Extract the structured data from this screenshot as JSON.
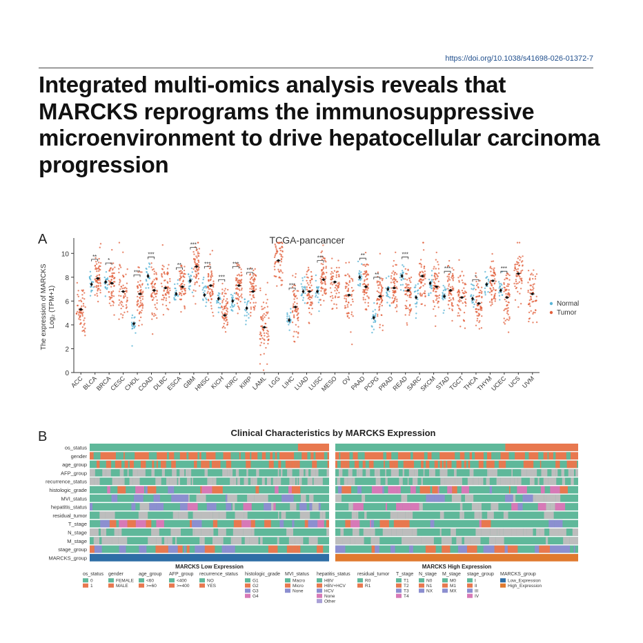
{
  "doi": "https://doi.org/10.1038/s41698-026-01372-7",
  "title": "Integrated multi-omics analysis reveals that MARCKS reprograms the immunosuppressive microenvironment to drive hepatocellular carcinoma progression",
  "colors": {
    "normal": "#5ab4d6",
    "tumor": "#e2603c",
    "teal": "#5fb89a",
    "orange": "#e8784f",
    "low_expr": "#2e6ea6",
    "high_expr": "#e07a2f"
  },
  "panelA": {
    "letter": "A",
    "chart_data": {
      "type": "scatter",
      "title": "TCGA-pancancer",
      "ylabel_line1": "The expression of MARCKS",
      "ylabel_line2": "Log₂ (TPM+1)",
      "ylim": [
        0,
        11
      ],
      "yticks": [
        "0",
        "2",
        "4",
        "6",
        "8",
        "10"
      ],
      "legend": [
        "Normal",
        "Tumor"
      ],
      "categories": [
        "ACC",
        "BLCA",
        "BRCA",
        "CESC",
        "CHOL",
        "COAD",
        "DLBC",
        "ESCA",
        "GBM",
        "HNSC",
        "KICH",
        "KIRC",
        "KIRP",
        "LAML",
        "LGG",
        "LIHC",
        "LUAD",
        "LUSC",
        "MESO",
        "OV",
        "PAAD",
        "PCPG",
        "PRAD",
        "READ",
        "SARC",
        "SKCM",
        "STAD",
        "TGCT",
        "THCA",
        "THYM",
        "UCEC",
        "UCS",
        "UVM"
      ],
      "normal_median": [
        null,
        7.4,
        7.6,
        null,
        4.1,
        8.1,
        null,
        6.6,
        7.7,
        6.5,
        6.2,
        6.0,
        5.4,
        null,
        null,
        4.4,
        6.8,
        6.8,
        null,
        null,
        8.0,
        4.6,
        7.0,
        8.1,
        6.3,
        7.5,
        6.4,
        null,
        6.2,
        7.4,
        6.9,
        null,
        null
      ],
      "tumor_median": [
        5.3,
        7.9,
        7.5,
        6.8,
        6.6,
        6.9,
        7.1,
        7.2,
        8.9,
        7.3,
        4.8,
        7.3,
        6.8,
        3.8,
        9.4,
        5.5,
        6.8,
        7.8,
        7.6,
        6.5,
        7.2,
        6.4,
        7.1,
        6.9,
        8.1,
        7.2,
        6.9,
        6.3,
        5.8,
        7.7,
        6.3,
        8.3,
        6.6
      ],
      "significance": [
        "",
        "**",
        "*",
        "",
        "***",
        "***",
        "",
        "**",
        "***",
        "***",
        "***",
        "***",
        "***",
        "",
        "",
        "***",
        "",
        "***",
        "",
        "",
        "**",
        "**",
        "",
        "***",
        "",
        "",
        "***",
        "",
        "*",
        "",
        "***",
        "",
        ""
      ]
    }
  },
  "panelB": {
    "letter": "B",
    "title": "Clinical Characteristics by MARCKS Expression",
    "rows": [
      "os_status",
      "gender",
      "age_group",
      "AFP_group",
      "recurrence_status",
      "histologic_grade",
      "MVI_status",
      "hepatitis_status",
      "residual_tumor",
      "T_stage",
      "N_stage",
      "M_stage",
      "stage_group",
      "MARCKS_group"
    ],
    "group_low": "MARCKS Low Expression",
    "group_high": "MARCKS High Expression",
    "legend": [
      {
        "title": "os_status",
        "items": [
          "0",
          "1"
        ]
      },
      {
        "title": "gender",
        "items": [
          "FEMALE",
          "MALE"
        ]
      },
      {
        "title": "age_group",
        "items": [
          "<60",
          ">=60"
        ]
      },
      {
        "title": "AFP_group",
        "items": [
          "<400",
          ">=400"
        ]
      },
      {
        "title": "recurrence_status",
        "items": [
          "NO",
          "YES"
        ]
      },
      {
        "title": "histologic_grade",
        "items": [
          "G1",
          "G2",
          "G3",
          "G4"
        ]
      },
      {
        "title": "MVI_status",
        "items": [
          "Macro",
          "Micro",
          "None"
        ]
      },
      {
        "title": "hepatitis_status",
        "items": [
          "HBV",
          "HBV+HCV",
          "HCV",
          "None",
          "Other"
        ]
      },
      {
        "title": "residual_tumor",
        "items": [
          "R0",
          "R1"
        ]
      },
      {
        "title": "T_stage",
        "items": [
          "T1",
          "T2",
          "T3",
          "T4"
        ]
      },
      {
        "title": "N_stage",
        "items": [
          "N0",
          "N1",
          "NX"
        ]
      },
      {
        "title": "M_stage",
        "items": [
          "M0",
          "M1",
          "MX"
        ]
      },
      {
        "title": "stage_group",
        "items": [
          "I",
          "II",
          "III",
          "IV"
        ]
      },
      {
        "title": "MARCKS_group",
        "items": [
          "Low_Expression",
          "High_Expression"
        ]
      }
    ]
  }
}
